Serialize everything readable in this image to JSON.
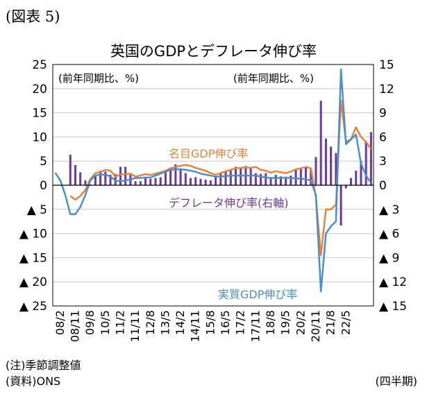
{
  "figure_label": "(図表 5)",
  "notes": [
    "(注)季節調整値",
    "(資料)ONS"
  ],
  "x_unit": "(四半期)",
  "chart_data": {
    "type": "bar+line",
    "title": "英国のGDPとデフレータ伸び率",
    "left_axis": {
      "label": "(前年同期比、%)",
      "range": [
        -25,
        25
      ],
      "ticks": [
        "▲ 25",
        "▲ 20",
        "▲ 15",
        "▲ 10",
        "▲ 5",
        "0",
        "5",
        "10",
        "15",
        "20",
        "25"
      ]
    },
    "right_axis": {
      "label": "(前年同期比、%)",
      "range": [
        -15,
        15
      ],
      "ticks": [
        "▲ 15",
        "▲ 12",
        "▲ 9",
        "▲ 6",
        "▲ 3",
        "0",
        "3",
        "6",
        "9",
        "12",
        "15"
      ]
    },
    "x_tick_labels": [
      "08/2",
      "08/11",
      "09/8",
      "10/5",
      "11/2",
      "11/11",
      "12/8",
      "13/5",
      "14/2",
      "14/11",
      "15/8",
      "16/5",
      "17/2",
      "17/11",
      "18/8",
      "19/5",
      "20/2",
      "20/11",
      "21/8",
      "22/5"
    ],
    "x_start": "2008Q1",
    "x_end": "2022Q4",
    "grid": true,
    "series": [
      {
        "name": "名目GDP伸び率",
        "kind": "line",
        "axis": "left",
        "color": "#e8823a",
        "values": [
          null,
          null,
          null,
          -2.2,
          -3.0,
          -2.2,
          -1.0,
          1.3,
          2.5,
          2.7,
          3.2,
          3.0,
          1.8,
          2.2,
          2.3,
          2.4,
          1.8,
          2.0,
          2.3,
          2.1,
          2.4,
          2.7,
          3.0,
          3.5,
          3.8,
          4.0,
          4.2,
          4.0,
          3.6,
          3.3,
          3.0,
          2.5,
          2.2,
          2.5,
          2.9,
          3.2,
          3.5,
          3.6,
          3.7,
          3.6,
          3.8,
          3.2,
          3.0,
          2.6,
          2.9,
          2.7,
          2.5,
          2.8,
          3.3,
          3.5,
          3.8,
          3.5,
          -2.5,
          -14.5,
          -5.0,
          -5.0,
          -4.0,
          17.5,
          9.0,
          9.5,
          12.0,
          10.0,
          9.0,
          7.5
        ]
      },
      {
        "name": "実質GDP伸び率",
        "kind": "line",
        "axis": "left",
        "color": "#4a8fc9",
        "values": [
          2.6,
          1.0,
          -2.0,
          -6.0,
          -6.0,
          -4.5,
          -2.0,
          1.0,
          2.0,
          2.2,
          2.2,
          1.8,
          1.0,
          0.8,
          1.0,
          1.2,
          1.5,
          1.5,
          1.6,
          1.6,
          2.0,
          2.4,
          2.8,
          3.2,
          3.3,
          3.3,
          3.2,
          3.0,
          2.8,
          2.4,
          2.2,
          2.0,
          1.8,
          1.8,
          1.9,
          2.0,
          2.0,
          2.0,
          2.0,
          2.0,
          2.0,
          1.8,
          1.6,
          1.5,
          1.5,
          1.5,
          1.6,
          1.5,
          1.4,
          1.4,
          1.2,
          1.0,
          -2.0,
          -22.0,
          -10.0,
          -8.5,
          -7.5,
          24.0,
          8.5,
          9.5,
          10.5,
          4.5,
          2.0,
          0.5
        ]
      },
      {
        "name": "デフレータ伸び率(右軸)",
        "kind": "bar",
        "axis": "right",
        "color": "#6a3a9e",
        "values": [
          null,
          null,
          null,
          3.8,
          2.5,
          1.6,
          0.6,
          0.1,
          1.1,
          1.8,
          1.7,
          1.3,
          1.4,
          2.3,
          2.3,
          1.3,
          0.5,
          0.5,
          1.0,
          0.8,
          0.9,
          1.0,
          1.7,
          2.2,
          2.6,
          2.0,
          1.5,
          0.9,
          1.0,
          0.8,
          0.7,
          0.6,
          1.0,
          1.5,
          1.7,
          2.0,
          2.3,
          2.2,
          2.4,
          2.1,
          1.5,
          1.4,
          1.5,
          1.0,
          1.3,
          1.1,
          1.0,
          1.2,
          1.9,
          2.1,
          2.3,
          2.1,
          3.5,
          10.5,
          5.8,
          4.8,
          4.0,
          -5.0,
          -0.4,
          0.9,
          1.8,
          3.0,
          5.4,
          6.6
        ]
      }
    ],
    "annotations": [
      "名目GDP伸び率",
      "デフレータ伸び率(右軸)",
      "実質GDP伸び率"
    ]
  }
}
